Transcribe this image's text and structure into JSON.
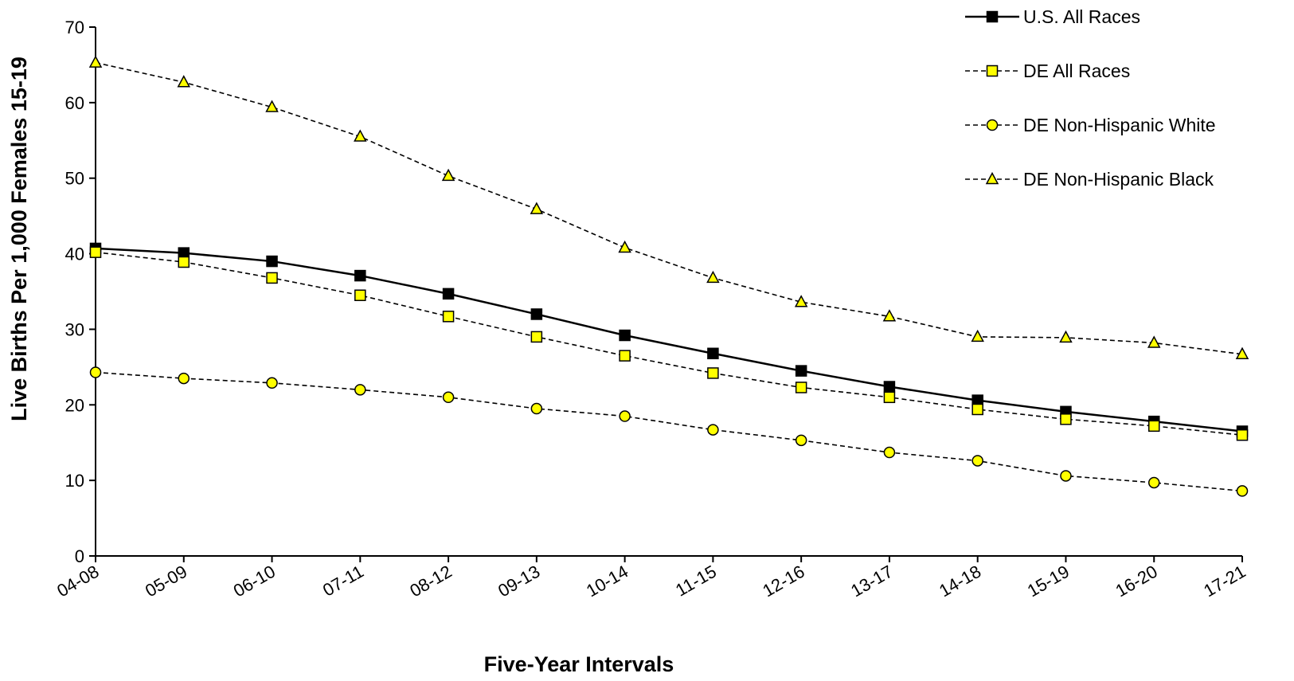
{
  "chart_data": {
    "type": "line",
    "title": "",
    "xlabel": "Five-Year Intervals",
    "ylabel": "Live Births Per 1,000 Females 15-19",
    "ylim": [
      0,
      70
    ],
    "yticks": [
      0,
      10,
      20,
      30,
      40,
      50,
      60,
      70
    ],
    "grid": false,
    "legend_position": "top-right",
    "categories": [
      "04-08",
      "05-09",
      "06-10",
      "07-11",
      "08-12",
      "09-13",
      "10-14",
      "11-15",
      "12-16",
      "13-17",
      "14-18",
      "15-19",
      "16-20",
      "17-21"
    ],
    "series": [
      {
        "name": "U.S. All Races",
        "line": "solid",
        "marker": "square",
        "marker_color": "#000000",
        "values": [
          40.7,
          40.1,
          39.0,
          37.1,
          34.7,
          32.0,
          29.2,
          26.8,
          24.5,
          22.4,
          20.6,
          19.1,
          17.8,
          16.5
        ]
      },
      {
        "name": "DE All Races",
        "line": "dashed",
        "marker": "square",
        "marker_color": "#ffff00",
        "values": [
          40.2,
          38.9,
          36.8,
          34.5,
          31.7,
          29.0,
          26.5,
          24.2,
          22.3,
          21.0,
          19.4,
          18.1,
          17.2,
          16.0
        ]
      },
      {
        "name": "DE Non-Hispanic White",
        "line": "dashed",
        "marker": "circle",
        "marker_color": "#ffff00",
        "values": [
          24.3,
          23.5,
          22.9,
          22.0,
          21.0,
          19.5,
          18.5,
          16.7,
          15.3,
          13.7,
          12.6,
          10.6,
          9.7,
          8.6
        ]
      },
      {
        "name": "DE  Non-Hispanic Black",
        "line": "dashed",
        "marker": "triangle",
        "marker_color": "#ffff00",
        "values": [
          65.3,
          62.7,
          59.4,
          55.5,
          50.3,
          45.9,
          40.8,
          36.8,
          33.6,
          31.7,
          29.0,
          28.9,
          28.2,
          26.7
        ]
      }
    ]
  }
}
